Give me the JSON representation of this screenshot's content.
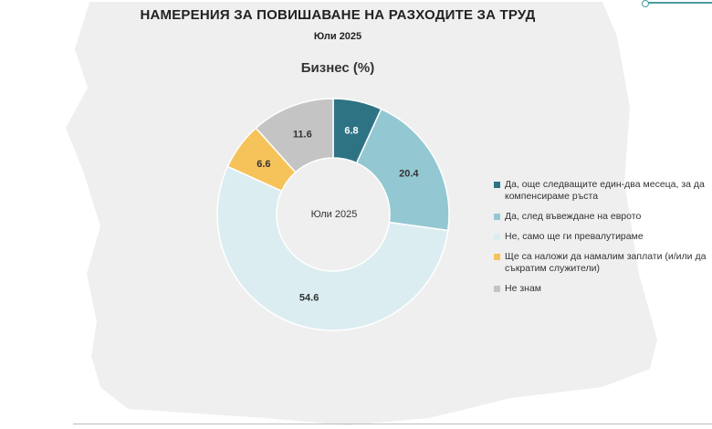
{
  "header": {
    "title": "НАМЕРЕНИЯ ЗА ПОВИШАВАНЕ НА РАЗХОДИТЕ ЗА ТРУД",
    "subtitle": "Юли 2025"
  },
  "chart_data": {
    "type": "pie",
    "title": "Бизнес (%)",
    "center_label": "Юли 2025",
    "categories": [
      "Да, още следващите един-два месеца, за да компенсираме ръста",
      "Да, след въвеждане на еврото",
      "Не, само ще ги превалутираме",
      "Ще са наложи да намалим заплати (и/или да съкратим служители)",
      "Не знам"
    ],
    "values": [
      6.8,
      20.4,
      54.6,
      6.6,
      11.6
    ],
    "labels": [
      "6.8",
      "20.4",
      "54.6",
      "6.6",
      "11.6"
    ],
    "colors": [
      "#2e7384",
      "#93c8d2",
      "#dbedf1",
      "#f6c35a",
      "#c4c4c4"
    ],
    "legend_position": "right",
    "start_angle_deg": 0,
    "direction": "clockwise"
  }
}
